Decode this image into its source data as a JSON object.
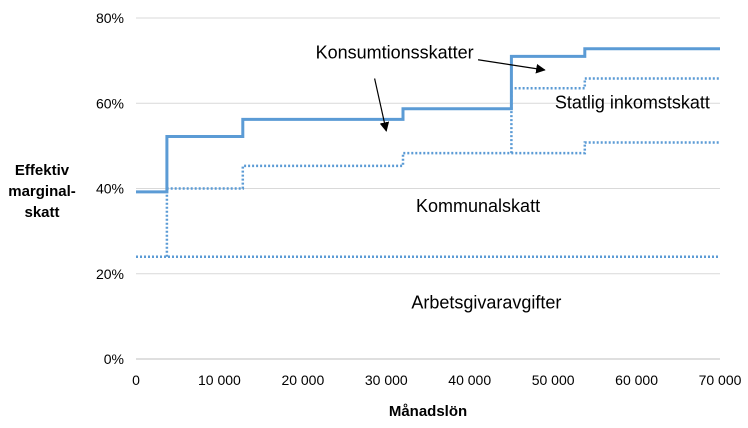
{
  "chart_data": {
    "type": "line",
    "xlabel": "Månadslön",
    "ylabel": [
      "Effektiv",
      "marginal-",
      "skatt"
    ],
    "xlim": [
      0,
      70000
    ],
    "ylim": [
      0,
      80
    ],
    "x_ticks": [
      "0",
      "10 000",
      "20 000",
      "30 000",
      "40 000",
      "50 000",
      "60 000",
      "70 000"
    ],
    "y_ticks": [
      "0%",
      "20%",
      "40%",
      "60%",
      "80%"
    ],
    "x_tick_values": [
      0,
      10000,
      20000,
      30000,
      40000,
      50000,
      60000,
      70000
    ],
    "y_tick_values": [
      0,
      20,
      40,
      60,
      80
    ],
    "grid": "horizontal",
    "colors": {
      "line": "#5b9bd5",
      "grid": "#d9d9d9",
      "axis": "#bfbfbf"
    },
    "series": [
      {
        "style": "dotted",
        "points": [
          [
            0,
            24
          ],
          [
            70000,
            24
          ]
        ]
      },
      {
        "style": "dotted",
        "points": [
          [
            3700,
            24
          ],
          [
            3700,
            40
          ],
          [
            12800,
            40
          ],
          [
            12800,
            45.3
          ],
          [
            32000,
            45.3
          ],
          [
            32000,
            48.3
          ],
          [
            45000,
            48.3
          ],
          [
            53800,
            48.3
          ],
          [
            53800,
            50.8
          ],
          [
            70000,
            50.8
          ]
        ]
      },
      {
        "style": "dotted",
        "points": [
          [
            45000,
            48.3
          ],
          [
            45000,
            63.5
          ],
          [
            53800,
            63.5
          ],
          [
            53800,
            65.8
          ],
          [
            70000,
            65.8
          ]
        ]
      },
      {
        "style": "solid",
        "points": [
          [
            0,
            39.2
          ],
          [
            3700,
            39.2
          ],
          [
            3700,
            52.2
          ],
          [
            12800,
            52.2
          ],
          [
            12800,
            56.2
          ],
          [
            32000,
            56.2
          ],
          [
            32000,
            58.7
          ],
          [
            45000,
            58.7
          ],
          [
            45000,
            71.0
          ],
          [
            53800,
            71.0
          ],
          [
            53800,
            72.8
          ],
          [
            70000,
            72.8
          ]
        ]
      }
    ],
    "annotations": [
      {
        "text": "Konsumtionsskatter",
        "x": 31000,
        "y": 70.5
      },
      {
        "text": "Statlig inkomstskatt",
        "x": 59500,
        "y": 58.8
      },
      {
        "text": "Kommunalskatt",
        "x": 41000,
        "y": 34.5
      },
      {
        "text": "Arbetsgivaravgifter",
        "x": 42000,
        "y": 11.8
      }
    ],
    "arrows": [
      {
        "from": [
          41000,
          70.2
        ],
        "to": [
          49000,
          67.8
        ]
      },
      {
        "from": [
          28600,
          65.8
        ],
        "to": [
          30000,
          53.5
        ]
      }
    ]
  }
}
